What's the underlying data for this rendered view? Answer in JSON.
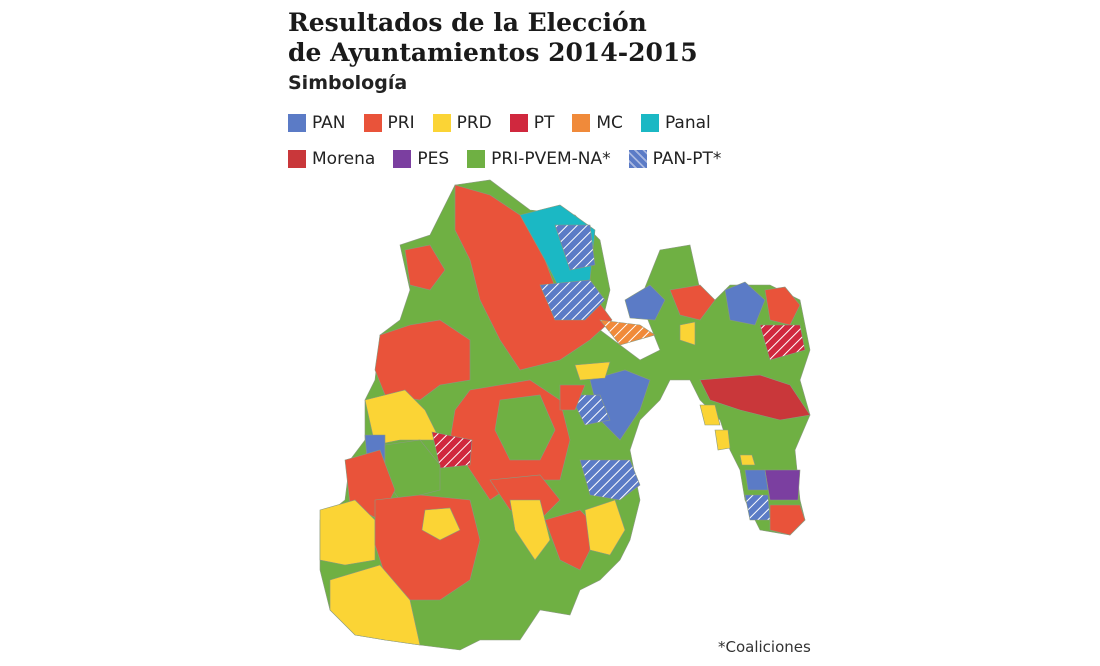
{
  "title_line1": "Resultados de la Elección",
  "title_line2": "de Ayuntamientos 2014-2015",
  "legend_title": "Simbología",
  "legend": [
    {
      "label": "PAN",
      "color": "#5b7bc6"
    },
    {
      "label": "PRI",
      "color": "#e9533a"
    },
    {
      "label": "PRD",
      "color": "#fbd435"
    },
    {
      "label": "PT",
      "color": "#d0283e"
    },
    {
      "label": "MC",
      "color": "#f08a3a"
    },
    {
      "label": "Panal",
      "color": "#1bb8c4"
    },
    {
      "label": "Morena",
      "color": "#c9373a"
    },
    {
      "label": "PES",
      "color": "#7b3fa0"
    },
    {
      "label": "PRI-PVEM-NA*",
      "color": "#6fb043"
    },
    {
      "label": "PAN-PT*",
      "color": "#5b7bc6",
      "pattern": "hatched"
    }
  ],
  "footnote": "*Coaliciones"
}
